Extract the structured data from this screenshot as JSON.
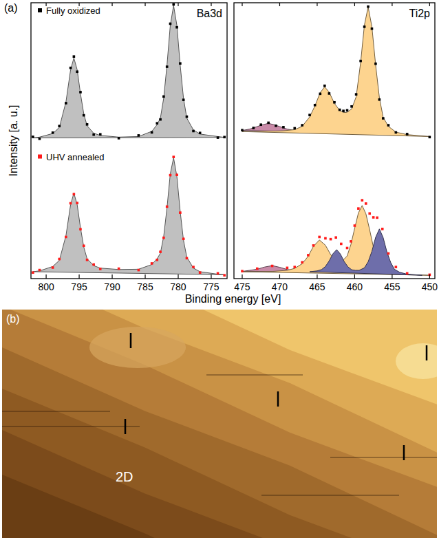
{
  "chart_data": [
    {
      "type": "scatter",
      "title": "Ba3d",
      "y_label": "Intensity [a. u.]",
      "xlim": [
        802.3,
        772.6
      ],
      "ylim": [
        0,
        100
      ],
      "xticks": [
        800,
        795,
        790,
        785,
        780,
        775
      ],
      "tick_labels": "x",
      "legend": "left",
      "series": [
        {
          "type": "area",
          "color": "#c0c0c0",
          "x": [
            802,
            801,
            799,
            798,
            797,
            796.3,
            795.8,
            795.3,
            794.8,
            794.3,
            793.8,
            792.8,
            791.8,
            789,
            786,
            784,
            783.2,
            782.7,
            782.2,
            781.7,
            781.2,
            780.7,
            780.2,
            779.7,
            779.2,
            778.7,
            777.7,
            776.7,
            774,
            773
          ],
          "values": [
            51,
            51.3,
            52.6,
            54.8,
            64.1,
            75.7,
            80,
            75.7,
            67,
            59.7,
            55.4,
            52.7,
            51.9,
            51.3,
            51.5,
            53.4,
            55.8,
            58.2,
            65.4,
            77.4,
            91.8,
            99,
            91.8,
            77.4,
            65.4,
            58.2,
            53.9,
            52.4,
            51.5,
            51.2
          ]
        },
        {
          "name": "Fully oxidized",
          "type": "scatter",
          "marker": "square",
          "color": "#000000",
          "x": [
            802,
            801,
            799,
            798,
            797,
            796.3,
            795.8,
            795.3,
            794.8,
            794.3,
            793.8,
            792.8,
            791.8,
            789,
            786,
            784,
            783.2,
            782.7,
            782.2,
            781.7,
            781.2,
            780.7,
            780.2,
            779.7,
            779.2,
            778.7,
            777.7,
            776.7,
            774,
            773
          ],
          "values": [
            51.4,
            50.7,
            52.9,
            55.3,
            63.6,
            76.4,
            80.5,
            75,
            67.6,
            59.2,
            55.9,
            52.2,
            52.3,
            50.9,
            51.9,
            53,
            56.3,
            57.7,
            66,
            76.8,
            92.4,
            99.4,
            91.1,
            78,
            64.8,
            58.7,
            53.5,
            52.8,
            51.1,
            51.3
          ]
        },
        {
          "type": "area",
          "color": "#c0c0c0",
          "x": [
            802,
            801,
            799,
            798,
            797,
            796.3,
            795.8,
            795.3,
            794.8,
            794.3,
            793.8,
            792.8,
            791.8,
            789,
            786,
            784,
            783.2,
            782.7,
            782.2,
            781.7,
            781.2,
            780.7,
            780.2,
            779.7,
            779.2,
            778.7,
            777.7,
            776.7,
            774,
            773
          ],
          "values": [
            2.5,
            2.8,
            4.4,
            6.6,
            15.6,
            26.8,
            31,
            26.8,
            18.4,
            11.4,
            7.2,
            4.7,
            3.8,
            3.3,
            3.4,
            5.1,
            7.2,
            9.2,
            15.3,
            25.6,
            38,
            43.8,
            37,
            24.4,
            13.9,
            7.8,
            3.8,
            2.5,
            1.6,
            1.4
          ]
        },
        {
          "name": "UHV annealed",
          "type": "scatter",
          "marker": "square",
          "color": "#ff1a1a",
          "x": [
            802,
            801,
            799,
            798,
            797,
            796.3,
            795.8,
            795.3,
            794.8,
            794.3,
            793.8,
            792.8,
            791.8,
            789,
            786,
            784,
            783.2,
            782.7,
            782.2,
            781.7,
            781.2,
            780.7,
            780.2,
            779.7,
            779.2,
            778.7,
            777.7,
            776.7,
            774,
            773
          ],
          "values": [
            2.2,
            3.1,
            4,
            7.1,
            15.1,
            27.3,
            30.6,
            27.4,
            17.9,
            11.9,
            6.8,
            5.1,
            3.5,
            3.6,
            3.1,
            5.5,
            6.8,
            9.7,
            14.8,
            26.1,
            37.5,
            44.1,
            37.6,
            23.9,
            14.4,
            7.4,
            4.2,
            2.2,
            1.9,
            1.2
          ]
        }
      ]
    },
    {
      "type": "scatter",
      "title": "Ti2p",
      "xlim": [
        476.1,
        449.3
      ],
      "ylim": [
        0,
        100
      ],
      "xticks": [
        475,
        470,
        465,
        460,
        455,
        450
      ],
      "tick_labels": "x",
      "series": [
        {
          "type": "area",
          "color": "#c98aa8",
          "x": [
            475,
            474,
            473,
            472.5,
            471.5,
            470.5,
            470,
            469,
            468,
            467,
            466
          ],
          "values": [
            53.7,
            54.2,
            55.1,
            55.6,
            56.3,
            55.6,
            55.1,
            54.2,
            53.7,
            53.4,
            53.2
          ]
        },
        {
          "type": "area",
          "color": "#fdd48f",
          "x": [
            475,
            473.5,
            472.5,
            471.5,
            470.5,
            469.5,
            468,
            467,
            466,
            465.3,
            464.6,
            464,
            463.4,
            462.7,
            462,
            461.5,
            461,
            460.4,
            459.8,
            459.2,
            458.7,
            458.2,
            457.7,
            457.2,
            456.7,
            456.2,
            455.5,
            454.5,
            453,
            450
          ],
          "values": [
            53.3,
            53.3,
            53.4,
            53.5,
            53.5,
            53.6,
            54,
            55.2,
            58.6,
            62.6,
            67.4,
            69.5,
            67.6,
            63.5,
            61,
            60.2,
            60.3,
            61.5,
            65.9,
            78.4,
            91.9,
            98.5,
            91.3,
            77.4,
            65.6,
            58.5,
            55.2,
            53.1,
            52.2,
            51.5
          ]
        },
        {
          "type": "scatter",
          "marker": "square",
          "color": "#000000",
          "x": [
            475,
            473.5,
            472.5,
            471.5,
            470.5,
            469.5,
            468,
            467,
            466,
            465.3,
            464.6,
            464,
            463.4,
            462.7,
            462,
            461.5,
            461,
            460.4,
            459.8,
            459.2,
            458.7,
            458.2,
            457.7,
            457.2,
            456.7,
            456.2,
            455.5,
            454.5,
            453,
            450
          ],
          "values": [
            53.8,
            54.6,
            55.8,
            56.5,
            55.4,
            54.9,
            54.5,
            55.6,
            59.3,
            62.9,
            67,
            69.9,
            67.1,
            63.9,
            61.2,
            60.8,
            61,
            62.4,
            66.8,
            78.9,
            91.3,
            98.6,
            90.6,
            77.9,
            64.9,
            58.1,
            55.6,
            53,
            52.4,
            51.3
          ]
        },
        {
          "type": "area",
          "color": "#c98aa8",
          "x": [
            475,
            474,
            473,
            472,
            471,
            470,
            469,
            468,
            467
          ],
          "values": [
            2.6,
            3,
            3.4,
            4.2,
            4.7,
            4.1,
            3.3,
            2.9,
            2.5
          ]
        },
        {
          "type": "area",
          "color": "#fdd48f",
          "x": [
            475,
            473,
            471,
            469,
            468,
            467,
            466.2,
            465.5,
            464.7,
            463.9,
            463.2,
            462.5,
            461.8,
            461,
            460.5,
            460,
            459.5,
            459,
            458.5,
            458,
            457.5,
            457,
            456.3,
            455.5,
            454.5,
            453,
            450
          ],
          "values": [
            2.5,
            2.5,
            2.6,
            3,
            3.7,
            5.4,
            8.1,
            11.7,
            14,
            12.1,
            8.7,
            6.6,
            6,
            8.2,
            12.4,
            18.2,
            23.8,
            26.5,
            23.5,
            17.7,
            11.4,
            6.9,
            3.9,
            2.5,
            1.8,
            1.5,
            1.2
          ]
        },
        {
          "type": "area",
          "color": "#6e6eaa",
          "x": [
            466,
            465,
            464.4,
            463.9,
            463.4,
            462.9,
            462.4,
            461.9,
            461.4,
            460.9,
            460.4,
            459.9,
            459.4,
            458.7,
            458.2,
            457.7,
            457.2,
            456.7,
            456.2,
            455.7,
            455.2,
            454.7,
            454,
            453,
            451
          ],
          "values": [
            2.5,
            2.8,
            3.3,
            4.4,
            6.4,
            9,
            10.5,
            8.9,
            6.2,
            4.3,
            3.2,
            3,
            3,
            3.9,
            6.1,
            9.9,
            15,
            18,
            14.9,
            9.7,
            5.9,
            3.4,
            2.3,
            1.6,
            1.2
          ]
        },
        {
          "type": "scatter",
          "marker": "square",
          "color": "#ff1a1a",
          "x": [
            475,
            473,
            471,
            469,
            468,
            467,
            466.2,
            465.5,
            464.7,
            463.9,
            463.2,
            462.5,
            461.8,
            461,
            460.5,
            460,
            459.5,
            459,
            458.5,
            458,
            457.5,
            457,
            456.3,
            455.5,
            454.5,
            453,
            450
          ],
          "values": [
            2.7,
            3.6,
            4.6,
            3.9,
            4.2,
            5.9,
            8.5,
            12,
            15.1,
            14.6,
            14.3,
            14.9,
            12.6,
            11.1,
            13.5,
            19.2,
            25.4,
            28.4,
            27.2,
            23.6,
            22.2,
            22.1,
            18,
            9.1,
            4.2,
            1.9,
            1.4
          ]
        }
      ]
    }
  ],
  "figure": {
    "panel_labels": [
      "(a)",
      "(b)"
    ],
    "x_label": "Binding energy [eV]",
    "image_label": "2D"
  }
}
